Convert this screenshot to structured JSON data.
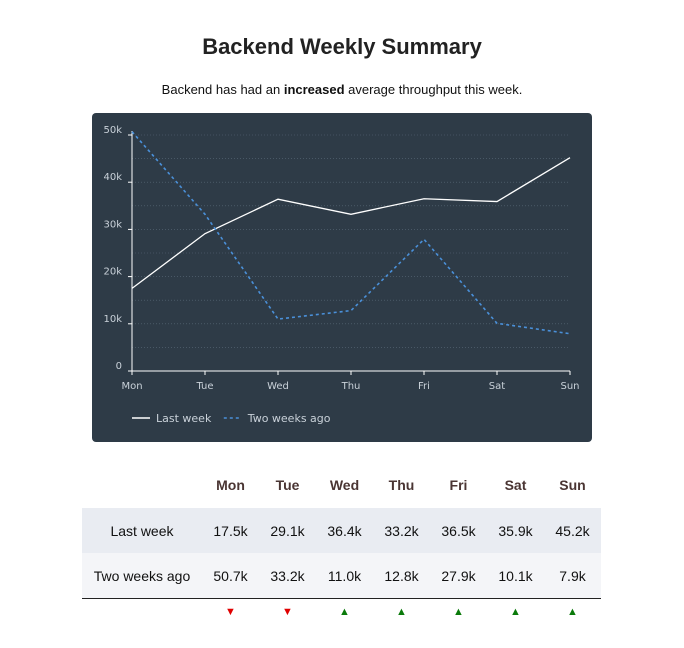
{
  "header": {
    "title": "Backend Weekly Summary",
    "summary_prefix": "Backend has had an ",
    "summary_emphasis": "increased",
    "summary_suffix": " average throughput this week."
  },
  "chart_data": {
    "type": "line",
    "categories": [
      "Mon",
      "Tue",
      "Wed",
      "Thu",
      "Fri",
      "Sat",
      "Sun"
    ],
    "series": [
      {
        "name": "Last week",
        "values": [
          17.5,
          29.1,
          36.4,
          33.2,
          36.5,
          35.9,
          45.2
        ],
        "color": "#ffffff",
        "style": "solid"
      },
      {
        "name": "Two weeks ago",
        "values": [
          50.7,
          33.2,
          11.0,
          12.8,
          27.9,
          10.1,
          7.9
        ],
        "color": "#4a90d9",
        "style": "dashed"
      }
    ],
    "ylim": [
      0,
      50
    ],
    "yticks": [
      {
        "value": 0,
        "label": "0"
      },
      {
        "value": 10,
        "label": "10k"
      },
      {
        "value": 20,
        "label": "20k"
      },
      {
        "value": 30,
        "label": "30k"
      },
      {
        "value": 40,
        "label": "40k"
      },
      {
        "value": 50,
        "label": "50k"
      }
    ],
    "grid": true,
    "legend": "bottom-left",
    "background": "#2e3b47"
  },
  "table": {
    "columns": [
      "Mon",
      "Tue",
      "Wed",
      "Thu",
      "Fri",
      "Sat",
      "Sun"
    ],
    "rows": [
      {
        "label": "Last week",
        "cells": [
          "17.5k",
          "29.1k",
          "36.4k",
          "33.2k",
          "36.5k",
          "35.9k",
          "45.2k"
        ]
      },
      {
        "label": "Two weeks ago",
        "cells": [
          "50.7k",
          "33.2k",
          "11.0k",
          "12.8k",
          "27.9k",
          "10.1k",
          "7.9k"
        ]
      }
    ],
    "trends": [
      "down",
      "down",
      "up",
      "up",
      "up",
      "up",
      "up"
    ],
    "trend_colors": {
      "up": "#0a7a0a",
      "down": "#e00000"
    }
  }
}
